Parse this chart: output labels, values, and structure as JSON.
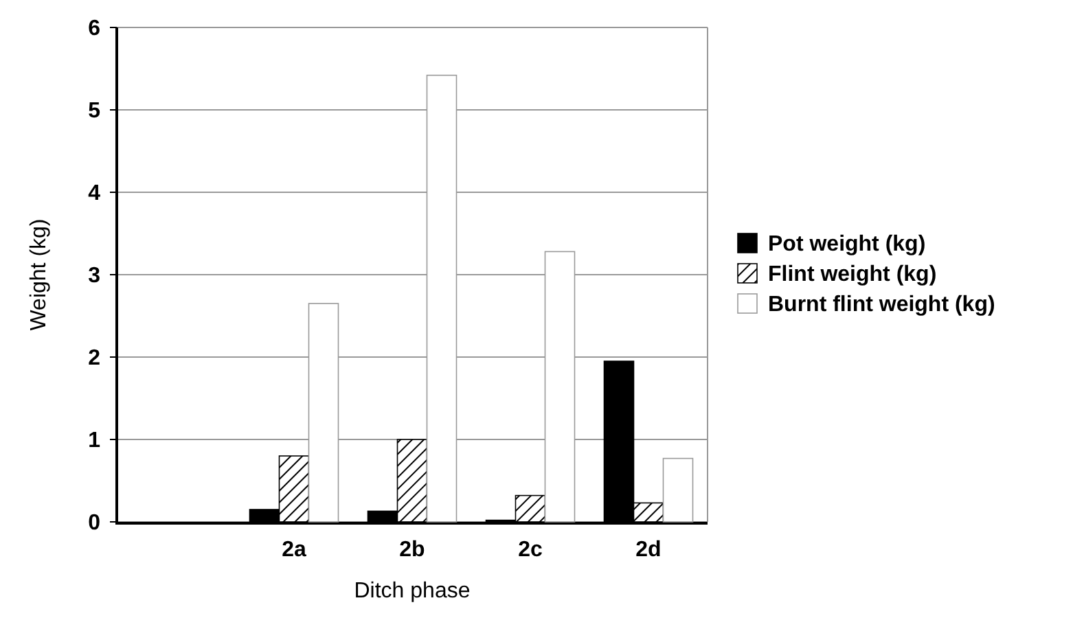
{
  "chart_data": {
    "type": "bar",
    "xlabel": "Ditch phase",
    "ylabel": "Weight (kg)",
    "categories": [
      null,
      "2a",
      "2b",
      "2c",
      "2d"
    ],
    "series": [
      {
        "name": "Pot weight (kg)",
        "color": "#000000",
        "values": [
          null,
          0.15,
          0.13,
          0.02,
          1.95
        ]
      },
      {
        "name": "Flint weight (kg)",
        "color": "#000000",
        "values": [
          null,
          0.8,
          1.0,
          0.32,
          0.23
        ]
      },
      {
        "name": "Burnt flint weight (kg)",
        "color": "#ffffff",
        "values": [
          null,
          2.65,
          5.42,
          3.28,
          0.77
        ]
      }
    ],
    "ylim": [
      0,
      6
    ],
    "yticks": [
      0,
      1,
      2,
      3,
      4,
      5,
      6
    ],
    "grid": "y",
    "legend": "right"
  }
}
